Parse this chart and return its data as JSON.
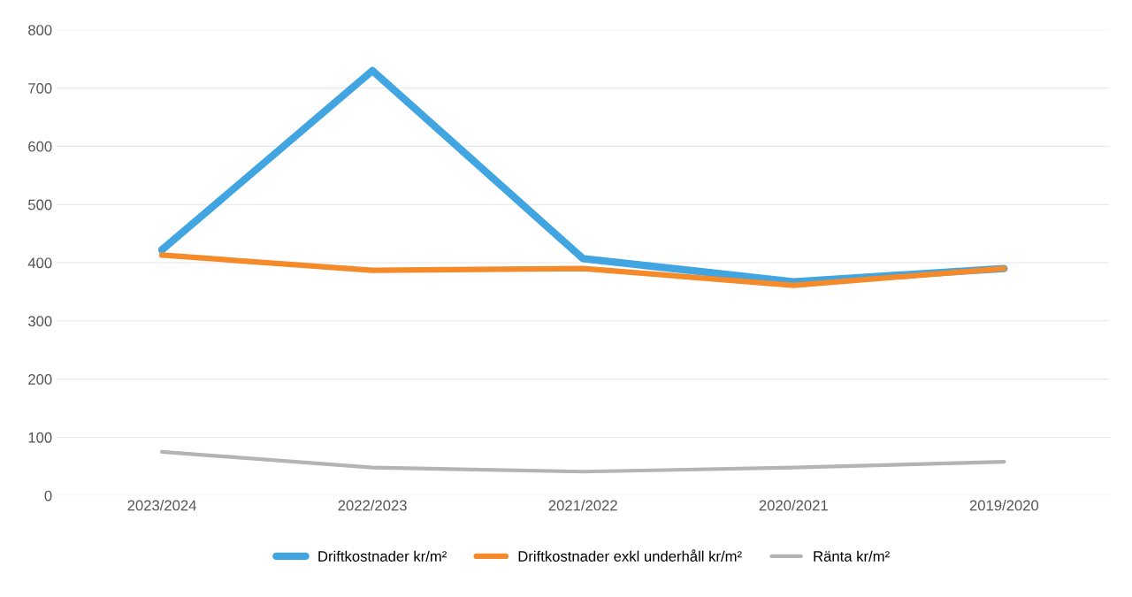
{
  "chart_data": {
    "type": "line",
    "categories": [
      "2023/2024",
      "2022/2023",
      "2021/2022",
      "2020/2021",
      "2019/2020"
    ],
    "series": [
      {
        "name": "Driftkostnader kr/m²",
        "color": "#41a5e1",
        "values": [
          422,
          730,
          407,
          367,
          390
        ]
      },
      {
        "name": "Driftkostnader exkl underhåll kr/m²",
        "color": "#f58a2a",
        "values": [
          413,
          387,
          390,
          361,
          390
        ]
      },
      {
        "name": "Ränta kr/m²",
        "color": "#b4b4b4",
        "values": [
          75,
          48,
          41,
          48,
          58
        ]
      }
    ],
    "ylim": [
      0,
      800
    ],
    "yticks": [
      0,
      100,
      200,
      300,
      400,
      500,
      600,
      700,
      800
    ],
    "grid": "y",
    "legend": "bottom",
    "marker": "none",
    "line_style": "solid"
  }
}
